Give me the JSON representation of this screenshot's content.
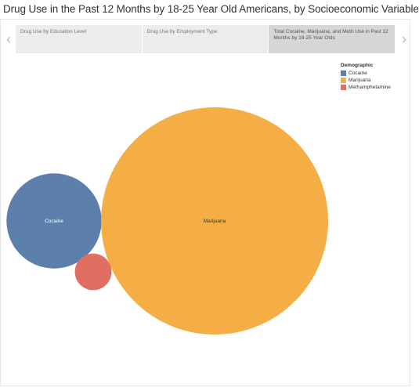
{
  "title": "Drug Use in the Past 12 Months by 18-25 Year Old Americans, by Socioeconomic Variable",
  "nav": {
    "prev": "‹",
    "next": "›"
  },
  "tabs": [
    {
      "label": "Drug Use by Education Level"
    },
    {
      "label": "Drug Use by Employment Type"
    },
    {
      "label": "Total Cocaine, Marijuana, and Meth Use in Past 12 Months by 18-25 Year Olds"
    }
  ],
  "legend": {
    "title": "Demographic",
    "items": [
      {
        "label": "Cocaine",
        "color": "#5d7fac"
      },
      {
        "label": "Marijuana",
        "color": "#f4ae45"
      },
      {
        "label": "Methamphetamine",
        "color": "#e06e62"
      }
    ]
  },
  "chart_data": {
    "type": "bubble",
    "bubbles": [
      {
        "name": "Cocaine",
        "label": "Cocaine",
        "relative_size": 0.175,
        "color": "#5d7fac"
      },
      {
        "name": "Marijuana",
        "label": "Marijuana",
        "relative_size": 1.0,
        "color": "#f4ae45"
      },
      {
        "name": "Methamphetamine",
        "label": "",
        "relative_size": 0.026,
        "color": "#e06e62"
      }
    ]
  }
}
